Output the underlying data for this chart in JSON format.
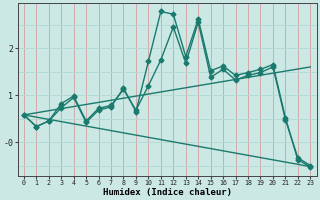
{
  "xlabel": "Humidex (Indice chaleur)",
  "bg_color": "#cce8e4",
  "line_color": "#1a7a6e",
  "grid_color_v": "#d4a0a0",
  "grid_color_h": "#b8d8d4",
  "xlim": [
    -0.5,
    23.5
  ],
  "ylim": [
    -0.72,
    2.95
  ],
  "xticks": [
    0,
    1,
    2,
    3,
    4,
    5,
    6,
    7,
    8,
    9,
    10,
    11,
    12,
    13,
    14,
    15,
    16,
    17,
    18,
    19,
    20,
    21,
    22,
    23
  ],
  "yticks": [
    0.0,
    1.0,
    2.0
  ],
  "ytick_labels": [
    "-0",
    "1",
    "2"
  ],
  "series1_x": [
    0,
    1,
    2,
    3,
    4,
    5,
    6,
    7,
    8,
    9,
    10,
    11,
    12,
    13,
    14,
    15,
    16,
    17,
    18,
    19,
    20,
    21,
    22,
    23
  ],
  "series1_y": [
    0.58,
    0.33,
    0.45,
    0.73,
    0.95,
    0.42,
    0.68,
    0.75,
    1.15,
    0.65,
    1.72,
    2.78,
    2.72,
    1.82,
    2.62,
    1.52,
    1.62,
    1.42,
    1.48,
    1.55,
    1.65,
    0.52,
    -0.38,
    -0.52
  ],
  "series2_x": [
    0,
    1,
    2,
    3,
    4,
    5,
    6,
    7,
    8,
    9,
    10,
    11,
    12,
    13,
    14,
    15,
    16,
    17,
    18,
    19,
    20,
    21,
    22,
    23
  ],
  "series2_y": [
    0.58,
    0.33,
    0.45,
    0.82,
    0.98,
    0.45,
    0.72,
    0.78,
    1.12,
    0.68,
    1.2,
    1.75,
    2.45,
    1.68,
    2.55,
    1.38,
    1.55,
    1.32,
    1.42,
    1.48,
    1.6,
    0.48,
    -0.33,
    -0.5
  ],
  "series3_x": [
    0,
    23
  ],
  "series3_y": [
    0.58,
    1.6
  ],
  "series4_x": [
    0,
    23
  ],
  "series4_y": [
    0.58,
    -0.52
  ],
  "marker_size": 2.5,
  "linewidth": 1.0
}
